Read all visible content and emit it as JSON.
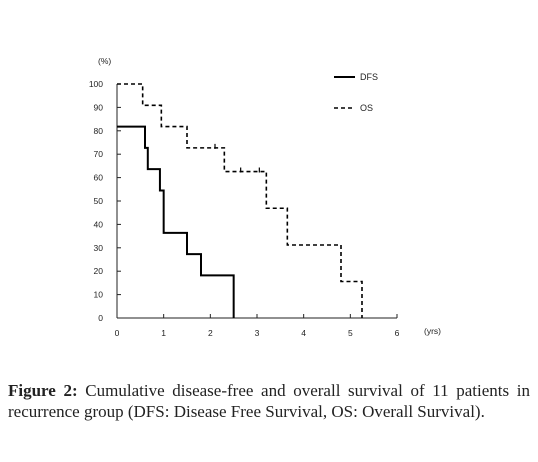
{
  "chart_data": {
    "type": "line",
    "step": true,
    "y_unit_label": "(%)",
    "x_unit_label": "(yrs)",
    "xlim": [
      0,
      6
    ],
    "ylim": [
      0,
      100
    ],
    "x_ticks": [
      "0",
      "1",
      "2",
      "3",
      "4",
      "5",
      "6"
    ],
    "y_ticks": [
      "0",
      "10",
      "20",
      "30",
      "40",
      "50",
      "60",
      "70",
      "80",
      "90",
      "100"
    ],
    "grid": false,
    "legend_position": "top-right",
    "series": [
      {
        "name": "DFS",
        "line_style": "solid",
        "color": "#000000",
        "x": [
          0,
          0.55,
          0.6,
          0.62,
          0.66,
          0.88,
          0.92,
          0.95,
          1.0,
          1.5,
          1.8,
          2.5
        ],
        "y": [
          81.8,
          81.8,
          72.7,
          72.7,
          63.6,
          63.6,
          54.5,
          54.5,
          36.4,
          27.3,
          18.2,
          0
        ]
      },
      {
        "name": "OS",
        "line_style": "dashed",
        "color": "#000000",
        "x": [
          0,
          0.55,
          0.95,
          1.5,
          2.2,
          2.3,
          3.2,
          3.65,
          4.8,
          5.25
        ],
        "y": [
          100,
          90.9,
          81.8,
          72.7,
          72.7,
          62.6,
          46.9,
          31.2,
          15.6,
          0
        ],
        "censor_marks": [
          {
            "x": 2.1,
            "y": 72.7
          },
          {
            "x": 2.65,
            "y": 62.6
          },
          {
            "x": 3.05,
            "y": 62.6
          }
        ]
      }
    ]
  },
  "caption": {
    "label": "Figure 2:",
    "text": " Cumulative disease-free and overall survival of 11 patients in recurrence group (DFS: Disease Free Survival, OS: Overall Survival)."
  }
}
